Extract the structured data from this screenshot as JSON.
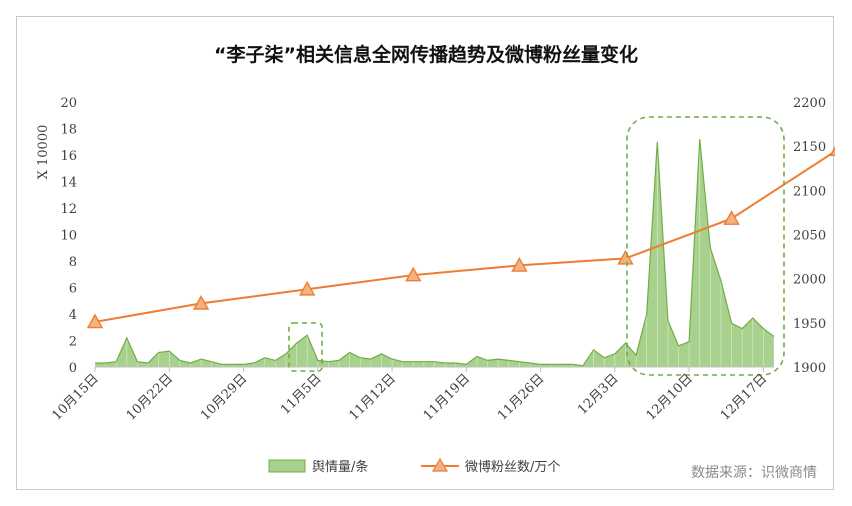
{
  "chart_data": {
    "type": "area+line",
    "title": "“李子柒”相关信息全网传播趋势及微博粉丝量变化",
    "y_left_label": "X 10000",
    "y_left_range": [
      0,
      20
    ],
    "y_left_ticks": [
      "0",
      "2",
      "4",
      "6",
      "8",
      "10",
      "12",
      "14",
      "16",
      "18",
      "20"
    ],
    "y_right_range": [
      1900,
      2200
    ],
    "y_right_ticks": [
      "1900",
      "1950",
      "2000",
      "2050",
      "2100",
      "2150",
      "2200"
    ],
    "x_tick_labels": [
      "10月15日",
      "10月22日",
      "10月29日",
      "11月5日",
      "11月12日",
      "11月19日",
      "11月26日",
      "12月3日",
      "12月10日",
      "12月17日"
    ],
    "series": [
      {
        "name": "舆情量/条",
        "kind": "area",
        "color": "#a9d18e",
        "edge_color": "#70ad47",
        "values": [
          0.3,
          0.3,
          0.4,
          2.2,
          0.4,
          0.3,
          1.1,
          1.2,
          0.5,
          0.3,
          0.6,
          0.4,
          0.2,
          0.2,
          0.2,
          0.3,
          0.7,
          0.5,
          1.0,
          1.8,
          2.4,
          0.5,
          0.4,
          0.5,
          1.1,
          0.7,
          0.6,
          1.0,
          0.6,
          0.4,
          0.4,
          0.4,
          0.4,
          0.3,
          0.3,
          0.2,
          0.8,
          0.5,
          0.6,
          0.5,
          0.4,
          0.3,
          0.2,
          0.2,
          0.2,
          0.2,
          0.1,
          1.3,
          0.7,
          1.0,
          1.8,
          0.9,
          4.0,
          17.0,
          3.5,
          1.6,
          1.9,
          17.2,
          9.0,
          6.5,
          3.3,
          2.9,
          3.7,
          2.9,
          2.3
        ]
      },
      {
        "name": "微博粉丝数/万个",
        "kind": "line",
        "color": "#ed7d31",
        "marker_fill": "#f4b183",
        "x_index": [
          0,
          10,
          20,
          30,
          40,
          50,
          60,
          70
        ],
        "values": [
          1951,
          1972,
          1988,
          2004,
          2015,
          2023,
          2068,
          2146
        ]
      }
    ],
    "legend": "bottom",
    "source_note": "数据来源：识微商情",
    "highlight_boxes": [
      "around 11月5日 peak",
      "around 12月 peaks"
    ]
  }
}
